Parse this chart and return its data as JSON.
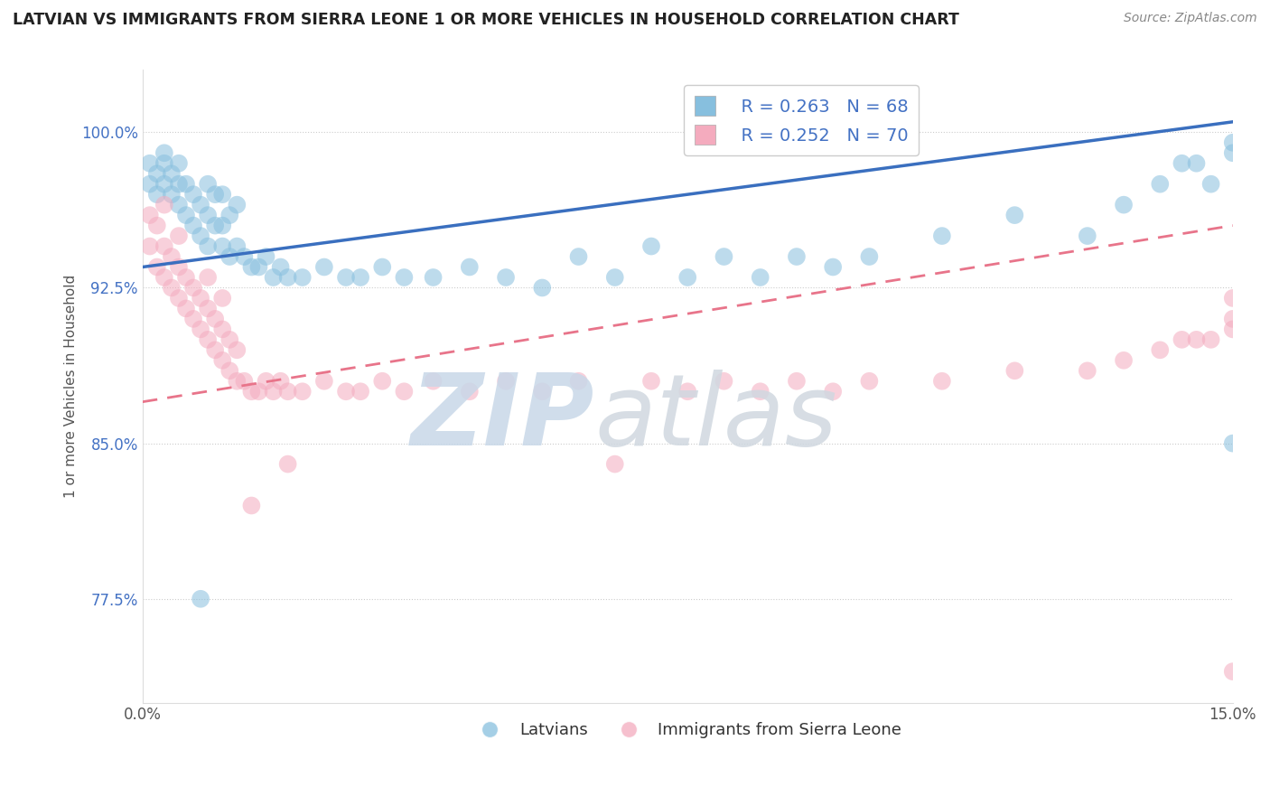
{
  "title": "LATVIAN VS IMMIGRANTS FROM SIERRA LEONE 1 OR MORE VEHICLES IN HOUSEHOLD CORRELATION CHART",
  "source": "Source: ZipAtlas.com",
  "ylabel": "1 or more Vehicles in Household",
  "xmin": 0.0,
  "xmax": 0.15,
  "ymin": 0.725,
  "ymax": 1.03,
  "yticks": [
    0.775,
    0.85,
    0.925,
    1.0
  ],
  "ytick_labels": [
    "77.5%",
    "85.0%",
    "92.5%",
    "100.0%"
  ],
  "xticks": [
    0.0,
    0.15
  ],
  "xtick_labels": [
    "0.0%",
    "15.0%"
  ],
  "legend_r1": "R = 0.263",
  "legend_n1": "N = 68",
  "legend_r2": "R = 0.252",
  "legend_n2": "N = 70",
  "latvian_color": "#87BFDE",
  "sierra_leone_color": "#F4ABBE",
  "latvian_line_color": "#3a6fbf",
  "sierra_leone_line_color": "#e8748a",
  "latvian_label": "Latvians",
  "sierra_leone_label": "Immigrants from Sierra Leone",
  "latvian_x": [
    0.001,
    0.001,
    0.002,
    0.002,
    0.003,
    0.003,
    0.003,
    0.004,
    0.004,
    0.005,
    0.005,
    0.005,
    0.006,
    0.006,
    0.007,
    0.007,
    0.008,
    0.008,
    0.009,
    0.009,
    0.009,
    0.01,
    0.01,
    0.011,
    0.011,
    0.011,
    0.012,
    0.012,
    0.013,
    0.013,
    0.014,
    0.015,
    0.016,
    0.017,
    0.018,
    0.019,
    0.02,
    0.022,
    0.025,
    0.028,
    0.03,
    0.033,
    0.036,
    0.04,
    0.045,
    0.05,
    0.055,
    0.06,
    0.065,
    0.07,
    0.075,
    0.08,
    0.085,
    0.09,
    0.095,
    0.1,
    0.11,
    0.12,
    0.13,
    0.135,
    0.14,
    0.143,
    0.145,
    0.147,
    0.15,
    0.15,
    0.15,
    0.008
  ],
  "latvian_y": [
    0.975,
    0.985,
    0.97,
    0.98,
    0.975,
    0.985,
    0.99,
    0.97,
    0.98,
    0.965,
    0.975,
    0.985,
    0.96,
    0.975,
    0.955,
    0.97,
    0.95,
    0.965,
    0.945,
    0.96,
    0.975,
    0.955,
    0.97,
    0.945,
    0.955,
    0.97,
    0.94,
    0.96,
    0.945,
    0.965,
    0.94,
    0.935,
    0.935,
    0.94,
    0.93,
    0.935,
    0.93,
    0.93,
    0.935,
    0.93,
    0.93,
    0.935,
    0.93,
    0.93,
    0.935,
    0.93,
    0.925,
    0.94,
    0.93,
    0.945,
    0.93,
    0.94,
    0.93,
    0.94,
    0.935,
    0.94,
    0.95,
    0.96,
    0.95,
    0.965,
    0.975,
    0.985,
    0.985,
    0.975,
    0.99,
    0.995,
    0.85,
    0.775
  ],
  "sierra_leone_x": [
    0.001,
    0.001,
    0.002,
    0.002,
    0.003,
    0.003,
    0.003,
    0.004,
    0.004,
    0.005,
    0.005,
    0.005,
    0.006,
    0.006,
    0.007,
    0.007,
    0.008,
    0.008,
    0.009,
    0.009,
    0.009,
    0.01,
    0.01,
    0.011,
    0.011,
    0.011,
    0.012,
    0.012,
    0.013,
    0.013,
    0.014,
    0.015,
    0.016,
    0.017,
    0.018,
    0.019,
    0.02,
    0.022,
    0.025,
    0.028,
    0.03,
    0.033,
    0.036,
    0.04,
    0.045,
    0.05,
    0.055,
    0.06,
    0.065,
    0.07,
    0.075,
    0.08,
    0.085,
    0.09,
    0.095,
    0.1,
    0.11,
    0.12,
    0.13,
    0.135,
    0.14,
    0.143,
    0.145,
    0.147,
    0.15,
    0.15,
    0.15,
    0.15,
    0.015,
    0.02
  ],
  "sierra_leone_y": [
    0.945,
    0.96,
    0.935,
    0.955,
    0.93,
    0.945,
    0.965,
    0.925,
    0.94,
    0.92,
    0.935,
    0.95,
    0.915,
    0.93,
    0.91,
    0.925,
    0.905,
    0.92,
    0.9,
    0.915,
    0.93,
    0.895,
    0.91,
    0.89,
    0.905,
    0.92,
    0.885,
    0.9,
    0.88,
    0.895,
    0.88,
    0.875,
    0.875,
    0.88,
    0.875,
    0.88,
    0.875,
    0.875,
    0.88,
    0.875,
    0.875,
    0.88,
    0.875,
    0.88,
    0.875,
    0.88,
    0.875,
    0.88,
    0.84,
    0.88,
    0.875,
    0.88,
    0.875,
    0.88,
    0.875,
    0.88,
    0.88,
    0.885,
    0.885,
    0.89,
    0.895,
    0.9,
    0.9,
    0.9,
    0.905,
    0.91,
    0.92,
    0.74,
    0.82,
    0.84
  ]
}
